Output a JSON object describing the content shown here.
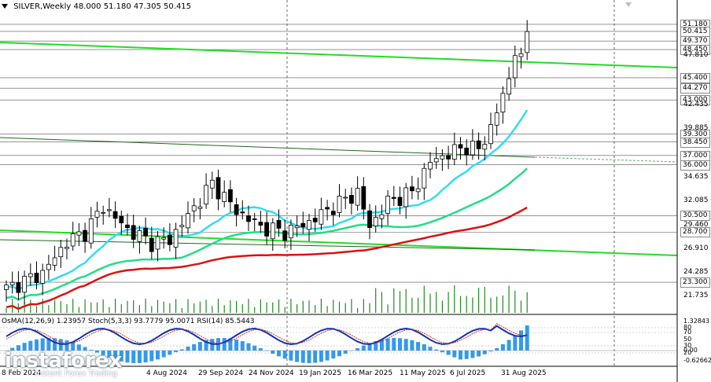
{
  "header": {
    "symbol": "SILVER,Weekly",
    "ohlc": "48.000 51.180 47.305 50.415"
  },
  "indicator_header": "OsMA(12,26,9) 1.23957  Stoch(5,3,3) 93.7779 95.0071  RSI(14) 85.5443",
  "price_axis": [
    {
      "text": "51.180",
      "price": 51.18,
      "box": true
    },
    {
      "text": "50.415",
      "price": 50.415,
      "box": true
    },
    {
      "text": "49.370",
      "price": 49.37,
      "box": true
    },
    {
      "text": "48.450",
      "price": 48.45,
      "box": true
    },
    {
      "text": "47.810",
      "price": 47.81,
      "box": false
    },
    {
      "text": "45.400",
      "price": 45.4,
      "box": true
    },
    {
      "text": "44.270",
      "price": 44.27,
      "box": true
    },
    {
      "text": "43.000",
      "price": 43.0,
      "box": true
    },
    {
      "text": "42.435",
      "price": 42.435,
      "box": false
    },
    {
      "text": "39.885",
      "price": 39.885,
      "box": false
    },
    {
      "text": "39.300",
      "price": 39.3,
      "box": true
    },
    {
      "text": "38.450",
      "price": 38.45,
      "box": true
    },
    {
      "text": "37.000",
      "price": 37.0,
      "box": true
    },
    {
      "text": "36.000",
      "price": 36.0,
      "box": true
    },
    {
      "text": "34.635",
      "price": 34.635,
      "box": false
    },
    {
      "text": "32.085",
      "price": 32.085,
      "box": false
    },
    {
      "text": "30.500",
      "price": 30.5,
      "box": true
    },
    {
      "text": "29.460",
      "price": 29.46,
      "box": false
    },
    {
      "text": "28.700",
      "price": 28.7,
      "box": true
    },
    {
      "text": "26.910",
      "price": 26.91,
      "box": false
    },
    {
      "text": "24.285",
      "price": 24.285,
      "box": false
    },
    {
      "text": "23.300",
      "price": 23.3,
      "box": true
    },
    {
      "text": "21.735",
      "price": 21.735,
      "box": false
    }
  ],
  "indicator_axis": [
    {
      "text": "1.32843",
      "y": 409
    },
    {
      "text": "80",
      "y": 417
    },
    {
      "text": "70",
      "y": 423
    },
    {
      "text": "50",
      "y": 432
    },
    {
      "text": "30",
      "y": 440
    },
    {
      "text": "0.00",
      "y": 446
    },
    {
      "text": "20",
      "y": 449
    },
    {
      "text": "-0.62662",
      "y": 459
    }
  ],
  "date_labels": [
    "8 Feb 2024",
    "4 Aug 2024",
    "29 Sep 2024",
    "24 Nov 2024",
    "19 Jan 2025",
    "16 Mar 2025",
    "11 May 2025",
    "6 Jul 2025",
    "31 Aug 2025"
  ],
  "logo": {
    "name": "instaforex",
    "tagline": "Instant Forex Trading"
  },
  "colors": {
    "trendline": "#22dd22",
    "ma_fast": "#33ddee",
    "ma_mid": "#22dd88",
    "ma_slow": "#dd1111",
    "bull": "#ffffff",
    "bear": "#000000",
    "volume": "#228822",
    "osma": "#3399ee",
    "stoch_main": "#1133aa",
    "stoch_signal": "#cc3333"
  }
}
